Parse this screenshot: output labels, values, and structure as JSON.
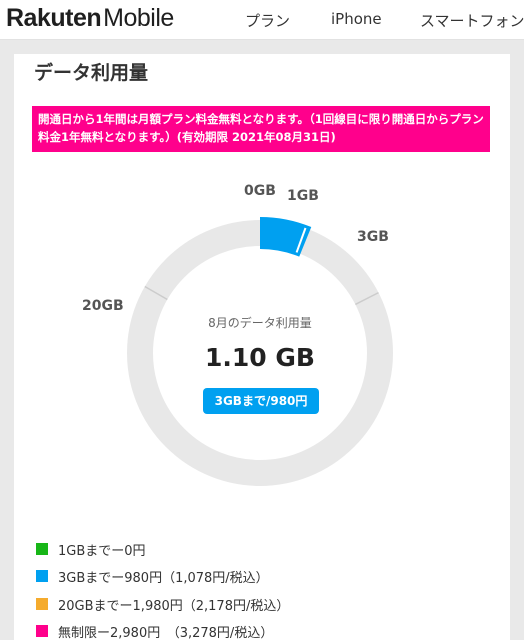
{
  "header": {
    "logo_bold": "Rakuten",
    "logo_light": "Mobile",
    "nav": [
      "プラン",
      "iPhone",
      "スマートフォン"
    ]
  },
  "section": {
    "title": "データ利用量",
    "banner": "開通日から1年間は月額プラン料金無料となります。（1回線目に限り開通日からプラン料金1年無料となります。）(有効期限 2021年08月31日)"
  },
  "chart_data": {
    "type": "donut",
    "used_gb": 1.1,
    "max_gb": 20,
    "ticks": [
      {
        "label": "0GB",
        "value": 0
      },
      {
        "label": "1GB",
        "value": 1
      },
      {
        "label": "3GB",
        "value": 3
      },
      {
        "label": "20GB",
        "value": 20
      }
    ],
    "center_label": "8月のデータ利用量",
    "center_value": "1.10 GB",
    "badge": "3GBまで/980円",
    "colors": {
      "used": "#00a0f0",
      "track": "#e8e8e8",
      "tick": "#cccccc"
    }
  },
  "legend": [
    {
      "text": "1GBまでー0円",
      "color": "#17b617"
    },
    {
      "text": "3GBまでー980円（1,078円/税込）",
      "color": "#00a0f0"
    },
    {
      "text": "20GBまでー1,980円（2,178円/税込）",
      "color": "#f5ab2d"
    },
    {
      "text": "無制限ー2,980円　（3,278円/税込）",
      "color": "#ff008c"
    }
  ]
}
